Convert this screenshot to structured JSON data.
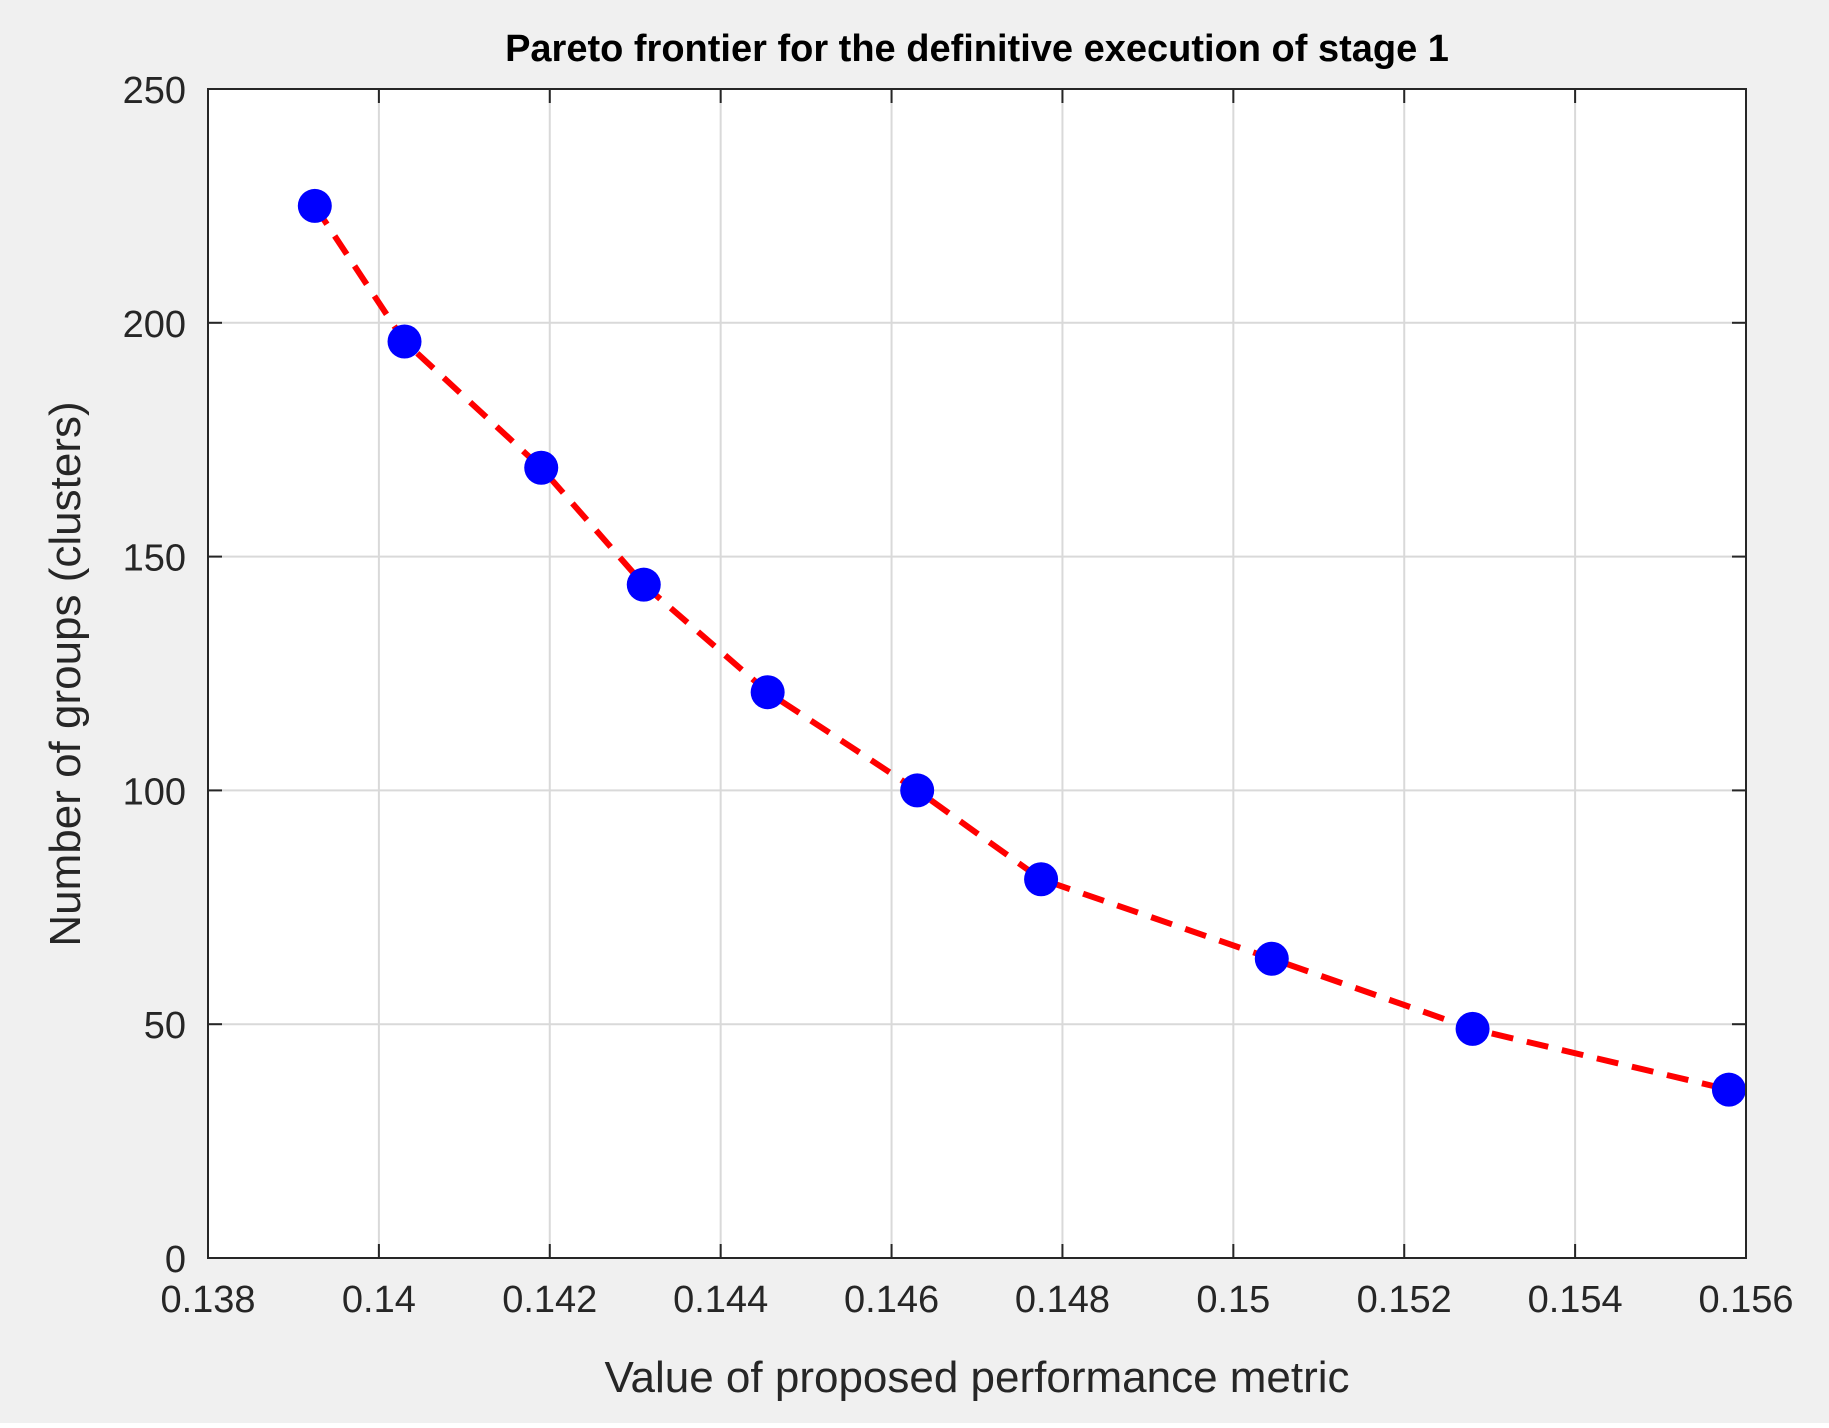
{
  "chart_data": {
    "type": "scatter",
    "title": "Pareto frontier for the definitive execution of stage 1",
    "xlabel": "Value of proposed performance metric",
    "ylabel": "Number of groups (clusters)",
    "xlim": [
      0.138,
      0.156
    ],
    "ylim": [
      0,
      250
    ],
    "x_ticks": [
      "0.138",
      "0.14",
      "0.142",
      "0.144",
      "0.146",
      "0.148",
      "0.15",
      "0.152",
      "0.154",
      "0.156"
    ],
    "y_ticks": [
      "0",
      "50",
      "100",
      "150",
      "200",
      "250"
    ],
    "grid": true,
    "legend": "none",
    "series": [
      {
        "style": "markers",
        "color": "#0000ff",
        "x": [
          0.13925,
          0.1403,
          0.1419,
          0.1431,
          0.14455,
          0.1463,
          0.14775,
          0.15045,
          0.1528,
          0.1558
        ],
        "y": [
          225,
          196,
          169,
          144,
          121,
          100,
          81,
          64,
          49,
          36
        ]
      },
      {
        "style": "dashed-line",
        "color": "#ff0000",
        "x": [
          0.13925,
          0.1403,
          0.1419,
          0.1431,
          0.14455,
          0.1463,
          0.14775,
          0.15045,
          0.1528,
          0.1558
        ],
        "y": [
          225,
          196,
          169,
          144,
          121,
          100,
          81,
          64,
          49,
          36
        ]
      }
    ]
  },
  "colors": {
    "figure_background": "#f0f0f0",
    "axes_background": "#ffffff",
    "grid": "#d9d9d9",
    "axis": "#262626",
    "marker": "#0000ff",
    "fit_line": "#ff0000"
  }
}
